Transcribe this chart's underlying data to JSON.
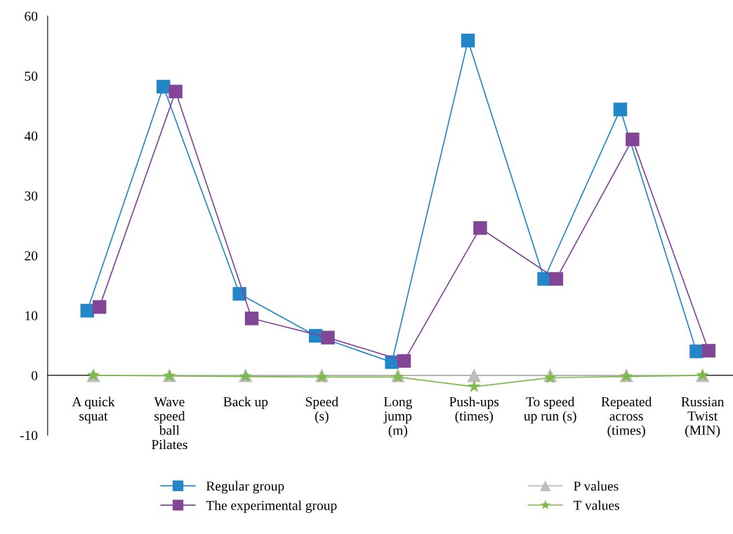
{
  "chart_data": {
    "type": "line",
    "categories": [
      "A quick\nsquat",
      "Wave\nspeed\nball\nPilates",
      "Back up",
      "Speed\n(s)",
      "Long\njump\n(m)",
      "Push-ups\n(times)",
      "To speed\nup run (s)",
      "Repeated\nacross\n(times)",
      "Russian\nTwist\n(MIN)"
    ],
    "series": [
      {
        "name": "Regular group",
        "color": "#2386c8",
        "marker": "square",
        "values": [
          10.8,
          48.2,
          13.6,
          6.6,
          2.2,
          55.9,
          16.1,
          44.4,
          4.0
        ]
      },
      {
        "name": "The experimental group",
        "color": "#834696",
        "marker": "square",
        "values": [
          11.4,
          47.4,
          9.5,
          6.3,
          2.4,
          24.6,
          16.1,
          39.4,
          4.1
        ]
      },
      {
        "name": "P values",
        "color": "#bdbdbd",
        "marker": "triangle",
        "values": [
          0,
          0,
          0,
          0,
          0,
          0,
          0,
          0,
          0
        ]
      },
      {
        "name": "T values",
        "color": "#7dbb4a",
        "marker": "star",
        "values": [
          0,
          -0.1,
          -0.2,
          -0.3,
          -0.3,
          -1.9,
          -0.4,
          -0.2,
          0
        ]
      }
    ],
    "ylim": [
      -10,
      60
    ],
    "yticks": [
      -10,
      0,
      10,
      20,
      30,
      40,
      50,
      60
    ],
    "grid": false,
    "legend": "bottom",
    "line_style": "solid"
  }
}
